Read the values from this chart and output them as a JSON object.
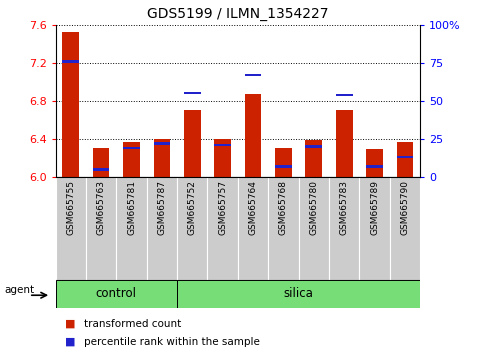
{
  "title": "GDS5199 / ILMN_1354227",
  "samples": [
    "GSM665755",
    "GSM665763",
    "GSM665781",
    "GSM665787",
    "GSM665752",
    "GSM665757",
    "GSM665764",
    "GSM665768",
    "GSM665780",
    "GSM665783",
    "GSM665789",
    "GSM665790"
  ],
  "transformed_count": [
    7.52,
    6.3,
    6.37,
    6.4,
    6.7,
    6.4,
    6.87,
    6.3,
    6.39,
    6.7,
    6.29,
    6.37
  ],
  "percentile_rank": [
    76,
    5,
    19,
    22,
    55,
    21,
    67,
    7,
    20,
    54,
    7,
    13
  ],
  "y_min": 6.0,
  "y_max": 7.6,
  "y_ticks": [
    6.0,
    6.4,
    6.8,
    7.2,
    7.6
  ],
  "y2_ticks": [
    0,
    25,
    50,
    75,
    100
  ],
  "y2_tick_labels": [
    "0",
    "25",
    "50",
    "75",
    "100%"
  ],
  "control_count": 4,
  "silica_count": 8,
  "bar_color": "#cc2200",
  "percentile_color": "#2222cc",
  "control_color": "#77dd77",
  "silica_color": "#77dd77",
  "label_bg_color": "#cccccc",
  "legend_items": [
    "transformed count",
    "percentile rank within the sample"
  ],
  "agent_label": "agent",
  "group_labels": [
    "control",
    "silica"
  ],
  "bar_width": 0.55
}
